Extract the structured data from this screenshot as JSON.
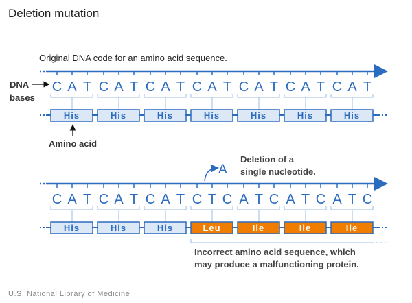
{
  "title": "Deletion mutation",
  "original_caption": "Original DNA code for an amino acid sequence.",
  "dna_label_line1": "DNA",
  "dna_label_line2": "bases",
  "amino_acid_label": "Amino acid",
  "original_sequence": [
    "C",
    "A",
    "T",
    "C",
    "A",
    "T",
    "C",
    "A",
    "T",
    "C",
    "A",
    "T",
    "C",
    "A",
    "T",
    "C",
    "A",
    "T",
    "C",
    "A",
    "T"
  ],
  "original_amino_acids": [
    "His",
    "His",
    "His",
    "His",
    "His",
    "His",
    "His"
  ],
  "deleted_base": "A",
  "deletion_note_line1": "Deletion of a",
  "deletion_note_line2": "single nucleotide.",
  "mutated_sequence": [
    "C",
    "A",
    "T",
    "C",
    "A",
    "T",
    "C",
    "A",
    "T",
    "C",
    "T",
    "C",
    "A",
    "T",
    "C",
    "A",
    "T",
    "C",
    "A",
    "T",
    "C"
  ],
  "mutated_amino_acids": [
    {
      "label": "His",
      "status": "normal"
    },
    {
      "label": "His",
      "status": "normal"
    },
    {
      "label": "His",
      "status": "normal"
    },
    {
      "label": "Leu",
      "status": "incorrect"
    },
    {
      "label": "Ile",
      "status": "incorrect"
    },
    {
      "label": "Ile",
      "status": "incorrect"
    },
    {
      "label": "Ile",
      "status": "incorrect"
    }
  ],
  "incorrect_note_line1": "Incorrect amino acid sequence, which",
  "incorrect_note_line2": "may produce a malfunctioning protein.",
  "footer": "U.S. National Library of Medicine",
  "colors": {
    "blue": "#2b6cc0",
    "box_fill": "#dde8f6",
    "light_line": "#9dbde6",
    "incorrect": "#f07d00",
    "text": "#333333",
    "footer": "#888888"
  }
}
